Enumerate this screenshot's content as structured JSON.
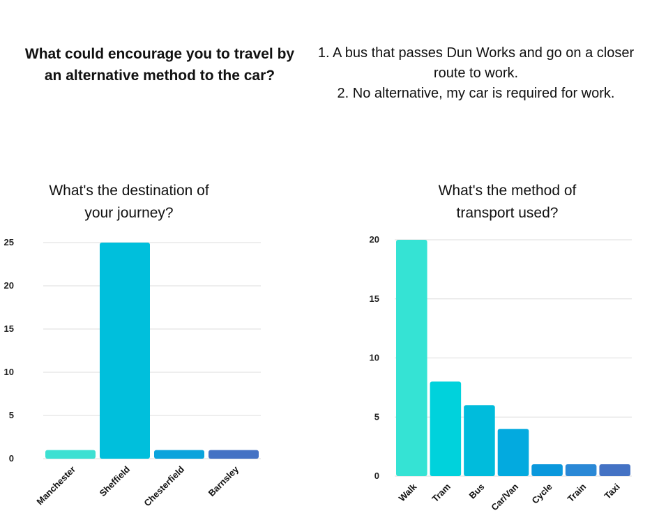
{
  "header": {
    "question": "What could encourage you to travel by an alternative method to the car?",
    "answers": [
      "1. A bus that passes Dun Works and go on a closer route to work.",
      "2. No alternative, my car is required for work."
    ]
  },
  "chart_data": [
    {
      "type": "bar",
      "title": "What's the destination of your journey?",
      "categories": [
        "Manchester",
        "Sheffield",
        "Chesterfield",
        "Barnsley"
      ],
      "values": [
        1,
        25,
        1,
        1
      ],
      "colors": [
        "#3de0d2",
        "#00bfdc",
        "#0aa3dc",
        "#4472c4"
      ],
      "ylim": [
        0,
        25
      ],
      "yticks": [
        0,
        5,
        10,
        15,
        20,
        25
      ],
      "grid": true
    },
    {
      "type": "bar",
      "title": "What's the method of transport used?",
      "categories": [
        "Walk",
        "Tram",
        "Bus",
        "Car/Van",
        "Cycle",
        "Train",
        "Taxi"
      ],
      "values": [
        20,
        8,
        6,
        4,
        1,
        1,
        1
      ],
      "colors": [
        "#35e3d4",
        "#00d2dc",
        "#00bcdc",
        "#03aadf",
        "#0a98dc",
        "#2a88d6",
        "#4472c4"
      ],
      "ylim": [
        0,
        20
      ],
      "yticks": [
        0,
        5,
        10,
        15,
        20
      ],
      "grid": true
    }
  ]
}
